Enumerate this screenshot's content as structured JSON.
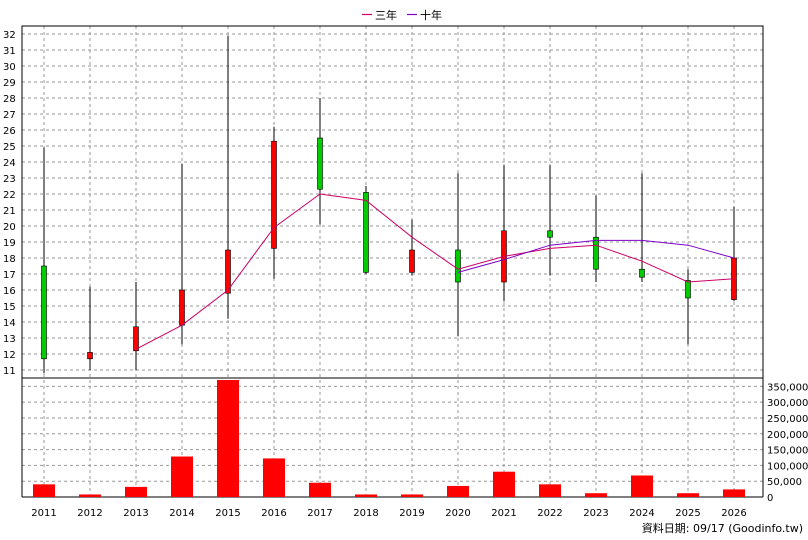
{
  "legend": {
    "items": [
      {
        "label": "三年",
        "color": "#cc0066"
      },
      {
        "label": "十年",
        "color": "#7f00c8"
      }
    ]
  },
  "source_note": "資料日期: 09/17 (Goodinfo.tw)",
  "colors": {
    "rise": "#ff0000",
    "fall": "#00cc00",
    "volume": "#ff0000",
    "ma3": "#cc0066",
    "ma10": "#7f00c8",
    "grid": "#999999"
  },
  "chart_data": [
    {
      "type": "candlestick",
      "x": [
        "2011",
        "2012",
        "2013",
        "2014",
        "2015",
        "2016",
        "2017",
        "2018",
        "2019",
        "2020",
        "2021",
        "2022",
        "2023",
        "2024",
        "2025",
        "2026"
      ],
      "ylim": [
        10.5,
        32.5
      ],
      "yticks": [
        11,
        12,
        13,
        14,
        15,
        16,
        17,
        18,
        19,
        20,
        21,
        22,
        23,
        24,
        25,
        26,
        27,
        28,
        29,
        30,
        31,
        32
      ],
      "grid": true,
      "candles": [
        {
          "year": "2011",
          "open": 17.5,
          "close": 11.7,
          "high": 24.9,
          "low": 10.8
        },
        {
          "year": "2012",
          "open": 11.7,
          "close": 12.1,
          "high": 16.2,
          "low": 11.0
        },
        {
          "year": "2013",
          "open": 12.2,
          "close": 13.7,
          "high": 16.5,
          "low": 11.0
        },
        {
          "year": "2014",
          "open": 13.8,
          "close": 16.0,
          "high": 23.9,
          "low": 12.6
        },
        {
          "year": "2015",
          "open": 15.8,
          "close": 18.5,
          "high": 31.9,
          "low": 14.2
        },
        {
          "year": "2016",
          "open": 18.6,
          "close": 25.3,
          "high": 26.2,
          "low": 16.7
        },
        {
          "year": "2017",
          "open": 25.5,
          "close": 22.3,
          "high": 28.0,
          "low": 20.1
        },
        {
          "year": "2018",
          "open": 22.1,
          "close": 17.1,
          "high": 22.5,
          "low": 17.0
        },
        {
          "year": "2019",
          "open": 17.1,
          "close": 18.5,
          "high": 20.4,
          "low": 16.9
        },
        {
          "year": "2020",
          "open": 18.5,
          "close": 16.5,
          "high": 23.3,
          "low": 13.1
        },
        {
          "year": "2021",
          "open": 16.5,
          "close": 19.7,
          "high": 23.8,
          "low": 15.3
        },
        {
          "year": "2022",
          "open": 19.7,
          "close": 19.3,
          "high": 23.8,
          "low": 16.9
        },
        {
          "year": "2023",
          "open": 19.3,
          "close": 17.3,
          "high": 21.9,
          "low": 16.5
        },
        {
          "year": "2024",
          "open": 17.3,
          "close": 16.8,
          "high": 23.3,
          "low": 16.5
        },
        {
          "year": "2025",
          "open": 16.6,
          "close": 15.5,
          "high": 17.3,
          "low": 12.6
        },
        {
          "year": "2026",
          "open": 15.4,
          "close": 18.0,
          "high": 21.2,
          "low": 15.3
        }
      ],
      "series": [
        {
          "name": "三年",
          "values": [
            null,
            null,
            12.3,
            13.8,
            16.0,
            19.9,
            22.0,
            21.6,
            19.3,
            17.3,
            18.1,
            18.6,
            18.8,
            17.8,
            16.5,
            16.7
          ]
        },
        {
          "name": "十年",
          "values": [
            null,
            null,
            null,
            null,
            null,
            null,
            null,
            null,
            null,
            17.1,
            17.9,
            18.8,
            19.1,
            19.1,
            18.8,
            18.0
          ]
        }
      ]
    },
    {
      "type": "bar",
      "x": [
        "2011",
        "2012",
        "2013",
        "2014",
        "2015",
        "2016",
        "2017",
        "2018",
        "2019",
        "2020",
        "2021",
        "2022",
        "2023",
        "2024",
        "2025",
        "2026"
      ],
      "values": [
        40000,
        8000,
        32000,
        128000,
        370000,
        122000,
        45000,
        8000,
        8000,
        35000,
        80000,
        40000,
        12000,
        68000,
        12000,
        24000
      ],
      "ylim": [
        0,
        370000
      ],
      "yticks": [
        0,
        50000,
        100000,
        150000,
        200000,
        250000,
        300000,
        350000
      ],
      "ytick_labels": [
        "0",
        "50,000",
        "100,000",
        "150,000",
        "200,000",
        "250,000",
        "300,000",
        "350,000"
      ],
      "grid": true
    }
  ]
}
